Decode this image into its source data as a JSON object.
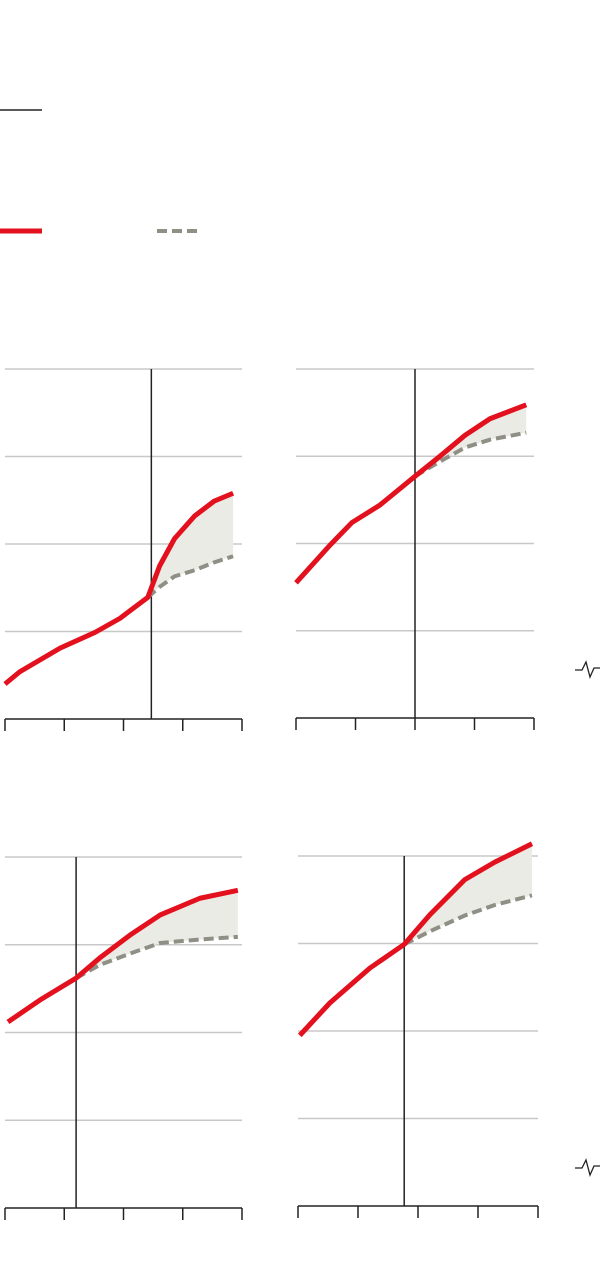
{
  "chart_data": [
    {
      "type": "line",
      "xlim": [
        0,
        4
      ],
      "xticks": [
        0,
        1,
        2,
        3,
        4
      ],
      "ylim": [
        0,
        4
      ],
      "yticks": [
        0,
        1,
        2,
        3,
        4
      ],
      "grid": true,
      "fill_between": true,
      "vline": 2.47,
      "x": [
        0,
        0.25,
        0.93,
        1.52,
        1.94,
        2.41,
        2.61,
        2.86,
        3.2,
        3.53,
        3.85
      ],
      "series": [
        {
          "color": "#e3101e",
          "values": [
            0.4,
            0.54,
            0.81,
            0.99,
            1.15,
            1.39,
            1.75,
            2.06,
            2.32,
            2.49,
            2.58
          ]
        },
        {
          "color": "#8f8f85",
          "dashed": true,
          "values": [
            null,
            null,
            null,
            null,
            null,
            1.39,
            1.51,
            1.63,
            1.7,
            1.79,
            1.86
          ]
        }
      ]
    },
    {
      "type": "line",
      "xlim": [
        0,
        4
      ],
      "xticks": [
        0,
        1,
        2,
        3,
        4
      ],
      "ylim": [
        0,
        4
      ],
      "yticks": [
        0,
        1,
        2,
        3,
        4
      ],
      "grid": true,
      "fill_between": true,
      "vline": 2,
      "x": [
        0,
        0.57,
        0.94,
        1.41,
        2.0,
        2.42,
        2.84,
        3.26,
        3.87
      ],
      "series": [
        {
          "color": "#e3101e",
          "values": [
            1.55,
            1.98,
            2.24,
            2.44,
            2.77,
            3.0,
            3.24,
            3.43,
            3.59
          ]
        },
        {
          "color": "#8f8f85",
          "dashed": true,
          "values": [
            null,
            null,
            null,
            null,
            2.77,
            2.94,
            3.1,
            3.19,
            3.27
          ]
        }
      ]
    },
    {
      "type": "line",
      "xlim": [
        0,
        4
      ],
      "xticks": [
        0,
        1,
        2,
        3,
        4
      ],
      "ylim": [
        0,
        4
      ],
      "yticks": [
        0,
        1,
        2,
        3,
        4
      ],
      "grid": true,
      "fill_between": true,
      "vline": 1.2,
      "x": [
        0.05,
        0.59,
        1.2,
        1.6,
        2.11,
        2.62,
        3.29,
        3.93
      ],
      "series": [
        {
          "color": "#e3101e",
          "values": [
            2.12,
            2.37,
            2.62,
            2.85,
            3.11,
            3.34,
            3.53,
            3.62
          ]
        },
        {
          "color": "#8f8f85",
          "dashed": true,
          "values": [
            null,
            null,
            2.62,
            2.77,
            2.9,
            3.02,
            3.06,
            3.09
          ]
        }
      ]
    },
    {
      "type": "line",
      "xlim": [
        0,
        4
      ],
      "xticks": [
        0,
        1,
        2,
        3,
        4
      ],
      "ylim": [
        0,
        4
      ],
      "yticks": [
        0,
        1,
        2,
        3,
        4
      ],
      "grid": true,
      "fill_between": true,
      "vline": 1.77,
      "x": [
        0.03,
        0.53,
        1.2,
        1.77,
        2.2,
        2.78,
        3.28,
        3.9
      ],
      "series": [
        {
          "color": "#e3101e",
          "values": [
            1.95,
            2.32,
            2.72,
            2.99,
            3.33,
            3.73,
            3.93,
            4.14
          ]
        },
        {
          "color": "#8f8f85",
          "dashed": true,
          "values": [
            null,
            null,
            null,
            2.99,
            3.14,
            3.32,
            3.44,
            3.55
          ]
        }
      ]
    }
  ]
}
